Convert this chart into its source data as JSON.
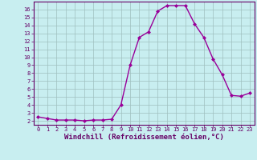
{
  "x": [
    0,
    1,
    2,
    3,
    4,
    5,
    6,
    7,
    8,
    9,
    10,
    11,
    12,
    13,
    14,
    15,
    16,
    17,
    18,
    19,
    20,
    21,
    22,
    23
  ],
  "y": [
    2.5,
    2.3,
    2.1,
    2.1,
    2.1,
    2.0,
    2.1,
    2.1,
    2.2,
    4.0,
    9.0,
    12.5,
    13.2,
    15.8,
    16.5,
    16.5,
    16.5,
    14.2,
    12.5,
    9.8,
    7.8,
    5.2,
    5.1,
    5.5
  ],
  "line_color": "#990099",
  "marker": "D",
  "markersize": 2.0,
  "markeredge": 0.5,
  "bg_color": "#c8eef0",
  "grid_color": "#9fbfbf",
  "xlabel": "Windchill (Refroidissement éolien,°C)",
  "xlim": [
    -0.5,
    23.5
  ],
  "ylim": [
    1.5,
    17.0
  ],
  "yticks": [
    2,
    3,
    4,
    5,
    6,
    7,
    8,
    9,
    10,
    11,
    12,
    13,
    14,
    15,
    16
  ],
  "xticks": [
    0,
    1,
    2,
    3,
    4,
    5,
    6,
    7,
    8,
    9,
    10,
    11,
    12,
    13,
    14,
    15,
    16,
    17,
    18,
    19,
    20,
    21,
    22,
    23
  ],
  "tick_fontsize": 5.0,
  "xlabel_fontsize": 6.5,
  "spine_color": "#660066",
  "linewidth": 1.0
}
